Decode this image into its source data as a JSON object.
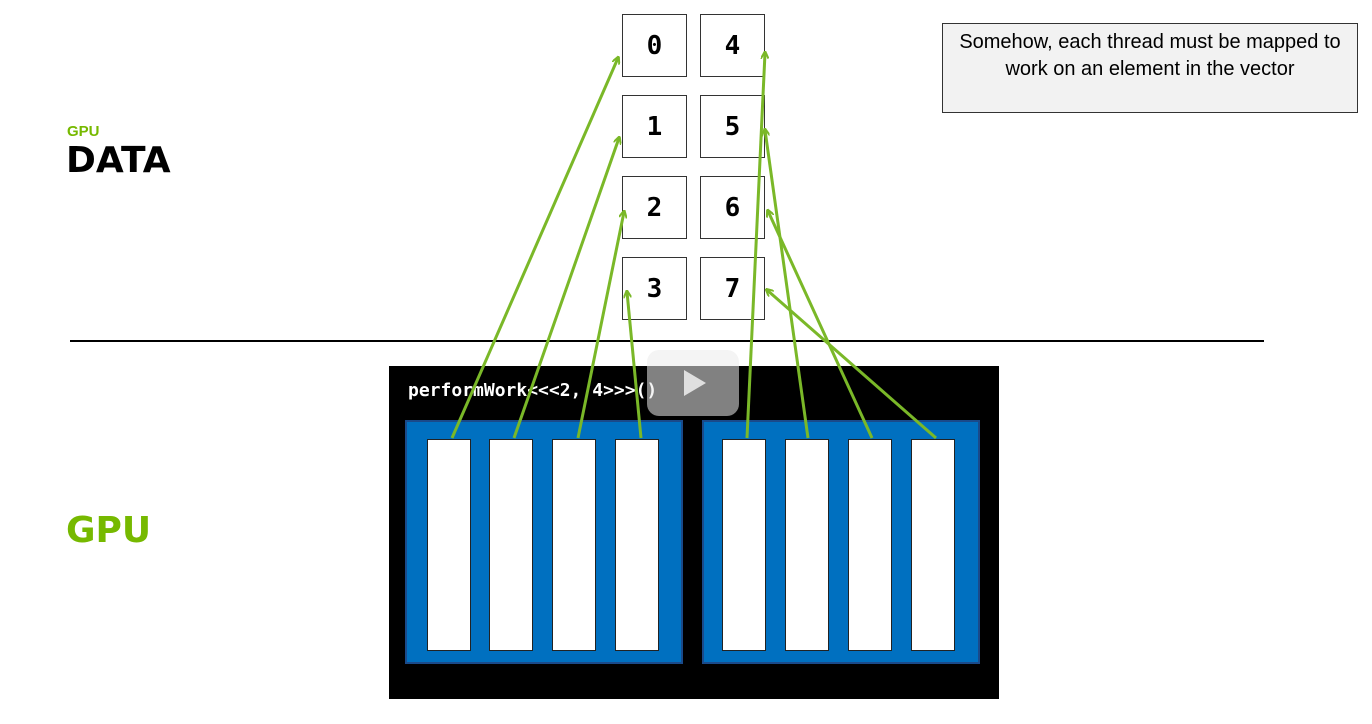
{
  "labels": {
    "gpu_small": "GPU",
    "data": "DATA",
    "gpu": "GPU"
  },
  "note": "Somehow, each thread must be mapped to work on an element in the vector",
  "kernel_call": "performWork<<<2, 4>>>()",
  "vector_elements": [
    "0",
    "1",
    "2",
    "3",
    "4",
    "5",
    "6",
    "7"
  ],
  "grid": {
    "blocks": 2,
    "threads_per_block": 4
  },
  "thread_to_element_mapping": [
    0,
    1,
    2,
    3,
    4,
    5,
    6,
    7
  ],
  "colors": {
    "accent_green": "#76b900",
    "block_blue": "#0070c0",
    "arrow_green": "#7ab828"
  },
  "icons": [
    "play-icon"
  ]
}
